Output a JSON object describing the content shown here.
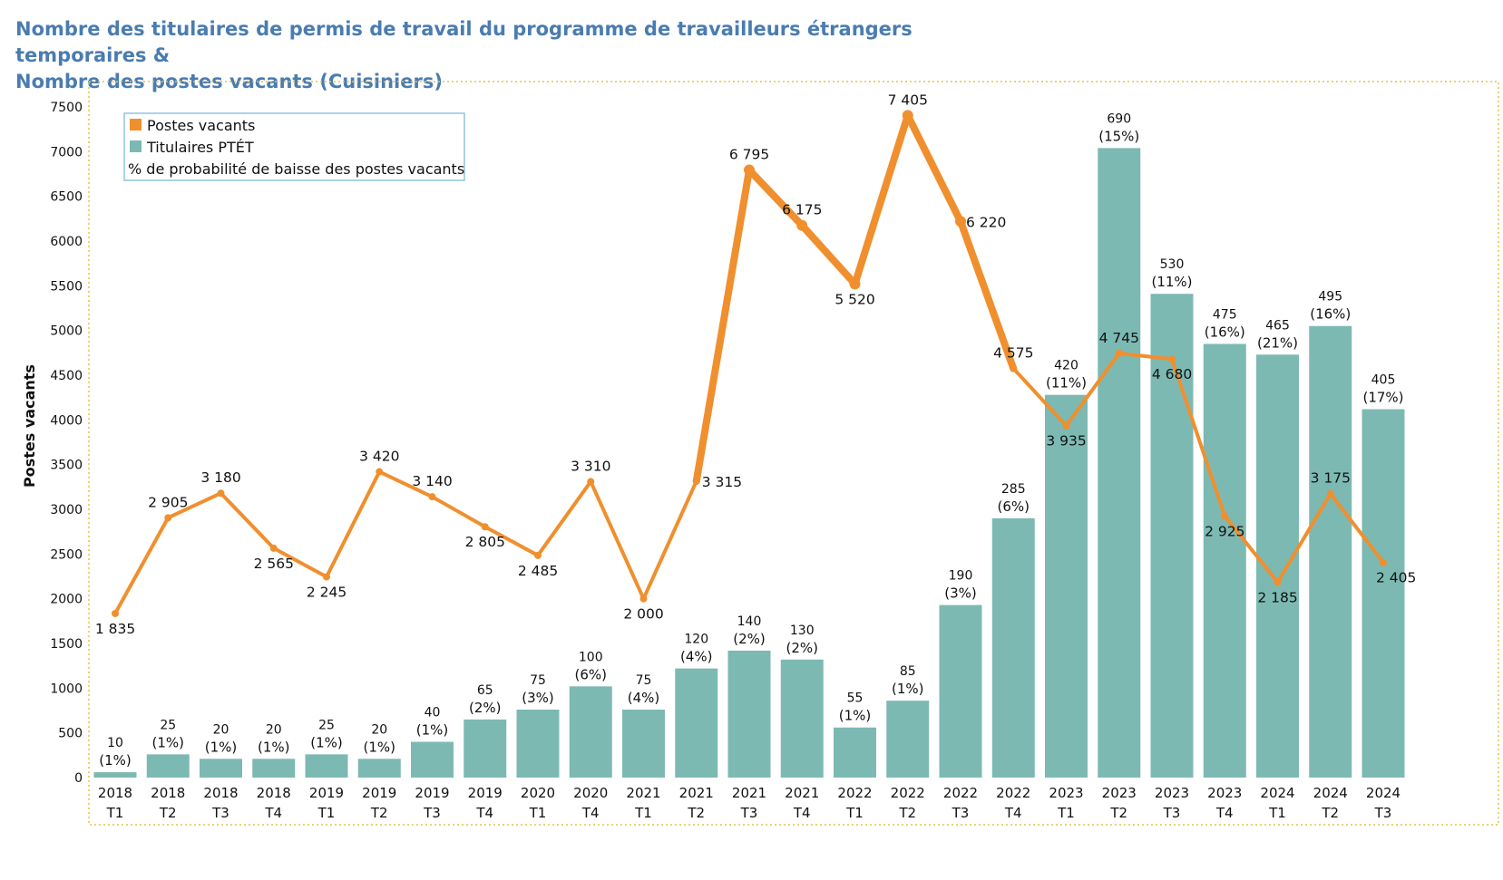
{
  "title_line1": "Nombre des titulaires de permis de travail du programme de travailleurs étrangers temporaires &",
  "title_line2": "Nombre des postes vacants (Cuisiniers)",
  "colors": {
    "title": "#4a7cb0",
    "line": "#f08f2e",
    "bar": "#7db9b3",
    "frame": "#e6c24a",
    "legend_border": "#8fc4dd"
  },
  "chart_data": {
    "type": "bar+line",
    "ylabel": "Postes vacants",
    "ylim": [
      0,
      7500
    ],
    "yticks": [
      0,
      500,
      1000,
      1500,
      2000,
      2500,
      3000,
      3500,
      4000,
      4500,
      5000,
      5500,
      6000,
      6500,
      7000,
      7500
    ],
    "legend": {
      "position": "top-left",
      "entries": [
        "Postes vacants",
        "Titulaires PTÉT",
        "% de probabilité de baisse des postes vacants"
      ]
    },
    "categories": [
      {
        "year": "2018",
        "q": "T1"
      },
      {
        "year": "2018",
        "q": "T2"
      },
      {
        "year": "2018",
        "q": "T3"
      },
      {
        "year": "2018",
        "q": "T4"
      },
      {
        "year": "2019",
        "q": "T1"
      },
      {
        "year": "2019",
        "q": "T2"
      },
      {
        "year": "2019",
        "q": "T3"
      },
      {
        "year": "2019",
        "q": "T4"
      },
      {
        "year": "2020",
        "q": "T1"
      },
      {
        "year": "2020",
        "q": "T4"
      },
      {
        "year": "2021",
        "q": "T1"
      },
      {
        "year": "2021",
        "q": "T2"
      },
      {
        "year": "2021",
        "q": "T3"
      },
      {
        "year": "2021",
        "q": "T4"
      },
      {
        "year": "2022",
        "q": "T1"
      },
      {
        "year": "2022",
        "q": "T2"
      },
      {
        "year": "2022",
        "q": "T3"
      },
      {
        "year": "2022",
        "q": "T4"
      },
      {
        "year": "2023",
        "q": "T1"
      },
      {
        "year": "2023",
        "q": "T2"
      },
      {
        "year": "2023",
        "q": "T3"
      },
      {
        "year": "2023",
        "q": "T4"
      },
      {
        "year": "2024",
        "q": "T1"
      },
      {
        "year": "2024",
        "q": "T2"
      },
      {
        "year": "2024",
        "q": "T3"
      }
    ],
    "series": [
      {
        "name": "Titulaires PTÉT",
        "type": "bar",
        "values": [
          60,
          260,
          210,
          210,
          260,
          210,
          400,
          650,
          760,
          1020,
          760,
          1220,
          1420,
          1320,
          560,
          860,
          1930,
          2900,
          4280,
          7040,
          5410,
          4850,
          4730,
          5050,
          4120
        ],
        "labels": [
          "10",
          "25",
          "20",
          "20",
          "25",
          "20",
          "40",
          "65",
          "75",
          "100",
          "75",
          "120",
          "140",
          "130",
          "55",
          "85",
          "190",
          "285",
          "420",
          "690",
          "530",
          "475",
          "465",
          "495",
          "405"
        ],
        "pct_labels": [
          "(1%)",
          "(1%)",
          "(1%)",
          "(1%)",
          "(1%)",
          "(1%)",
          "(1%)",
          "(2%)",
          "(3%)",
          "(6%)",
          "(4%)",
          "(4%)",
          "(2%)",
          "(2%)",
          "(1%)",
          "(1%)",
          "(3%)",
          "(6%)",
          "(11%)",
          "(15%)",
          "(11%)",
          "(16%)",
          "(21%)",
          "(16%)",
          "(17%)"
        ]
      },
      {
        "name": "Postes vacants",
        "type": "line",
        "values": [
          1835,
          2905,
          3180,
          2565,
          2245,
          3420,
          3140,
          2805,
          2485,
          3310,
          2000,
          3315,
          6795,
          6175,
          5520,
          7405,
          6220,
          4575,
          3935,
          4745,
          4680,
          2925,
          2185,
          3175,
          2405
        ],
        "labels": [
          "1 835",
          "2 905",
          "3 180",
          "2 565",
          "2 245",
          "3 420",
          "3 140",
          "2 805",
          "2 485",
          "3 310",
          "2 000",
          "3 315",
          "6 795",
          "6 175",
          "5 520",
          "7 405",
          "6 220",
          "4 575",
          "3 935",
          "4 745",
          "4 680",
          "2 925",
          "2 185",
          "3 175",
          "2 405"
        ]
      }
    ]
  }
}
